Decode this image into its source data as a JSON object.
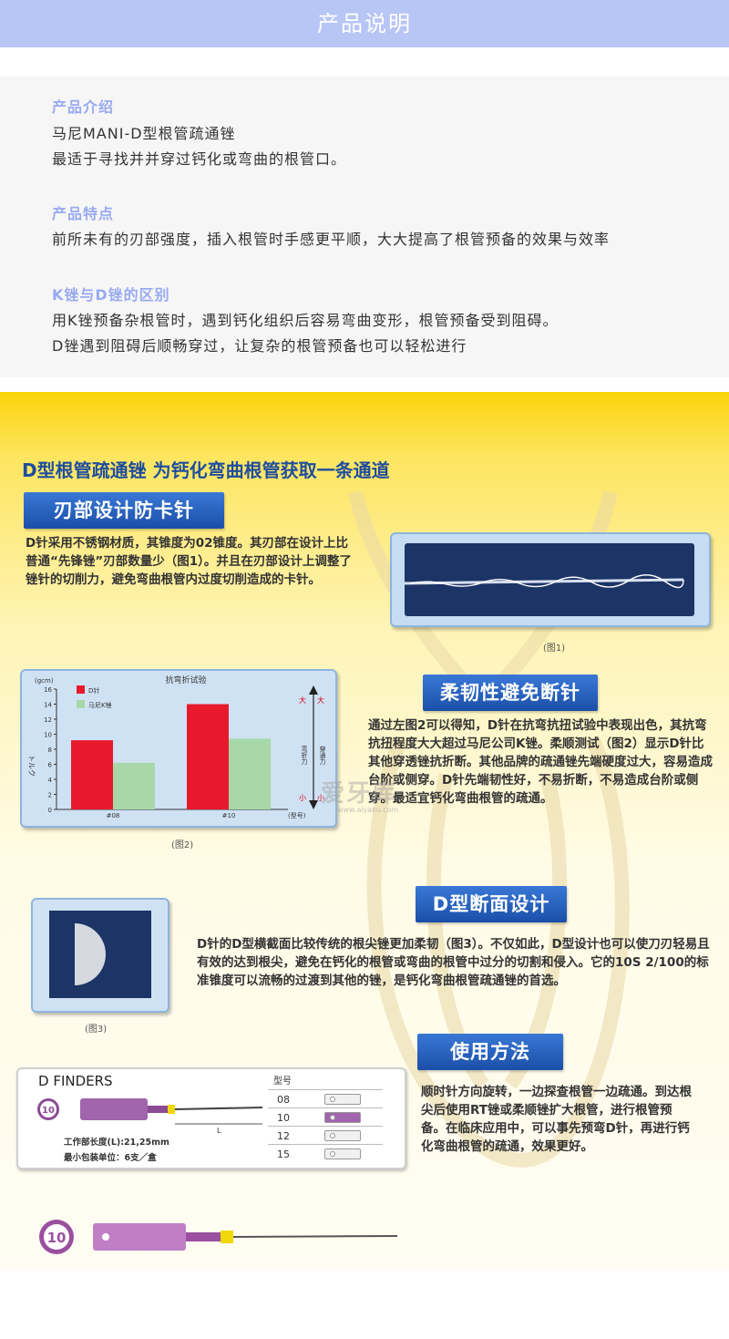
{
  "header": {
    "title": "产品说明"
  },
  "intro": {
    "h1": "产品介绍",
    "t1a": "马尼MANI-D型根管疏通锉",
    "t1b": "最适于寻找并并穿过钙化或弯曲的根管口。",
    "h2": "产品特点",
    "t2": "前所未有的刃部强度，插入根管时手感更平顺，大大提高了根管预备的效果与效率",
    "h3": "K锉与D锉的区别",
    "t3a": "用K锉预备杂根管时，遇到钙化组织后容易弯曲变形，根管预备受到阻碍。",
    "t3b": "D锉遇到阻碍后顺畅穿过，让复杂的根管预备也可以轻松进行"
  },
  "promo": {
    "title": "D型根管疏通锉 为钙化弯曲根管获取一条通道",
    "s1_banner": "刃部设计防卡针",
    "s1_text": "D针采用不锈钢材质，其锥度为02锥度。其刃部在设计上比普通“先锋锉”刃部数量少（图1）。并且在刃部设计上调整了锉针的切削力，避免弯曲根管内过度切削造成的卡针。",
    "fig1_caption": "(图1)",
    "s2_banner": "柔韧性避免断针",
    "s2_text": "通过左图2可以得知，D针在抗弯抗扭试验中表现出色，其抗弯抗扭程度大大超过马尼公司K锉。柔顺测试（图2）显示D针比其他穿透锉抗折断。其他品牌的疏通锉先端硬度过大，容易造成台阶或侧穿。D针先端韧性好，不易折断，不易造成台阶或侧穿。最适宜钙化弯曲根管的疏通。",
    "fig2_caption": "(图2)",
    "s3_banner": "D型断面设计",
    "s3_text": "D针的D型横截面比较传统的根尖锉更加柔韧（图3）。不仅如此，D型设计也可以使刀刃轻易且有效的达到根尖，避免在钙化的根管或弯曲的根管中过分的切割和侵入。它的10S 2/100的标准锥度可以流畅的过渡到其他的锉，是钙化弯曲根管疏通锉的首选。",
    "fig3_caption": "(图3)",
    "s4_banner": "使用方法",
    "s4_text": "顺时针方向旋转，一边探查根管一边疏通。到达根尖后使用RT锉或柔顺锉扩大根管，进行根管预备。在临床应用中，可以事先预弯D针，再进行钙化弯曲根管的疏通，效果更好。",
    "watermark": "爱牙库",
    "watermark_url": "www.aiyaku.com"
  },
  "dfinders": {
    "title": "D FINDERS",
    "badge": "10",
    "dim_label": "L",
    "working_length": "工作部长度(L):21,25mm",
    "min_pack": "最小包装单位：6支／盒",
    "size_header": "型号",
    "sizes": [
      "08",
      "10",
      "12",
      "15"
    ],
    "bottom_badge": "10"
  },
  "chart_data": {
    "type": "bar",
    "title": "抗弯折试验",
    "unit": "(gcm)",
    "ylabel": "トルク",
    "xlabel": "(型号)",
    "categories": [
      "#08",
      "#10"
    ],
    "series": [
      {
        "name": "D针",
        "values": [
          9.2,
          14
        ],
        "color": "#e8192c"
      },
      {
        "name": "马尼K锉",
        "values": [
          6.2,
          9.4
        ],
        "color": "#a8d8a8"
      }
    ],
    "ylim": [
      0,
      16
    ],
    "yticks": [
      0,
      2,
      4,
      6,
      8,
      10,
      12,
      14,
      16
    ],
    "right_label": "弯折力",
    "right_label2": "穿通力",
    "high_label": "大",
    "high_label2": "大",
    "low_label": "小",
    "low_label2": "小"
  }
}
